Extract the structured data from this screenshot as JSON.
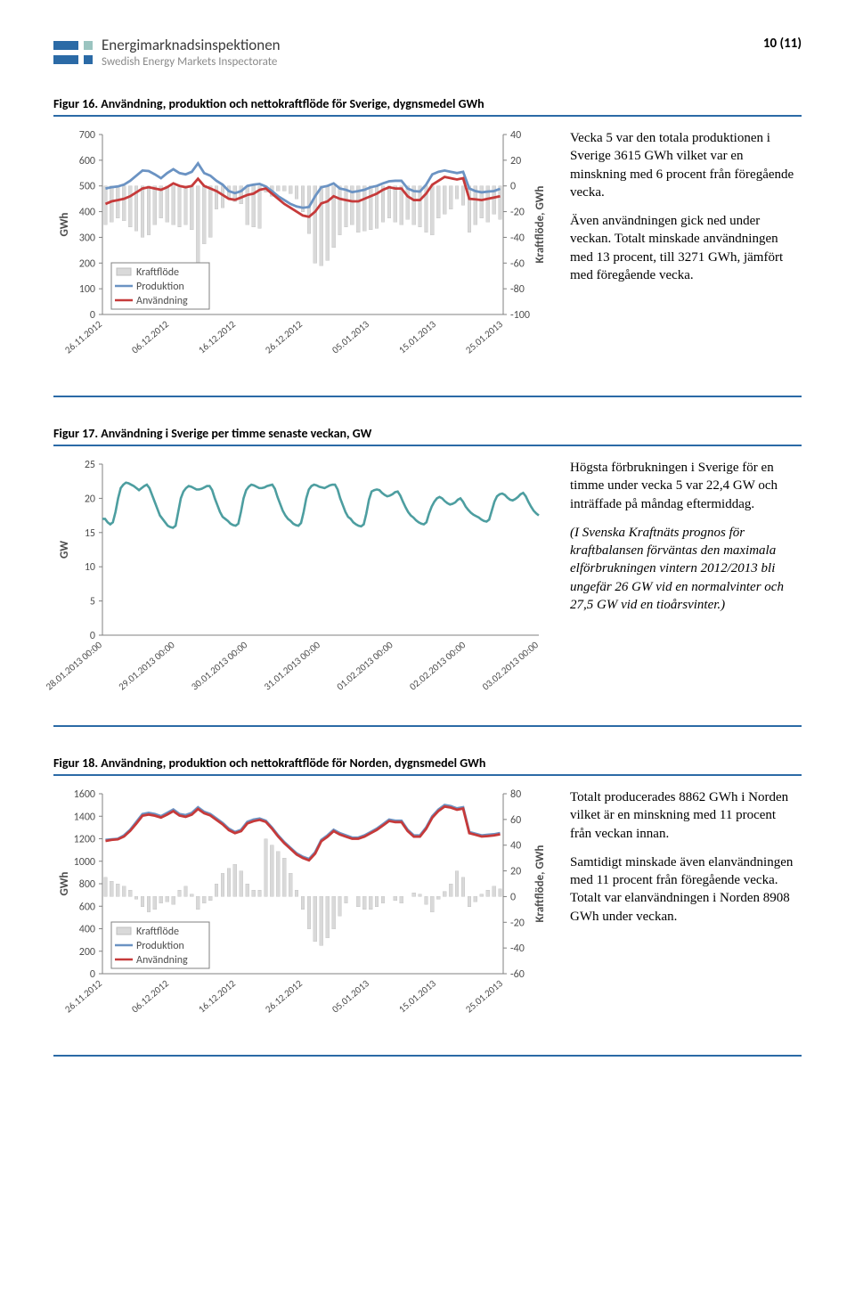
{
  "header": {
    "org1": "Energimarknadsinspektionen",
    "org2": "Swedish Energy Markets Inspectorate",
    "page_num": "10 (11)"
  },
  "colors": {
    "brand_blue": "#2b6aa6",
    "brand_teal": "#9bc4c0",
    "line_prod": "#6b93c3",
    "line_use": "#c63a3a",
    "line_hourly": "#4d9ea0",
    "bar_grey": "#d9d9d9",
    "grid": "#bfbfbf",
    "axis": "#808080",
    "text": "#4d4d4d"
  },
  "fig16": {
    "caption": "Figur 16. Användning, produktion och nettokraftflöde för Sverige, dygnsmedel GWh",
    "left_axis": {
      "label": "GWh",
      "min": 0,
      "max": 700,
      "step": 100
    },
    "right_axis": {
      "label": "Kraftflöde, GWh",
      "min": -100,
      "max": 40,
      "step": 20
    },
    "x_labels": [
      "26.11.2012",
      "06.12.2012",
      "16.12.2012",
      "26.12.2012",
      "05.01.2013",
      "15.01.2013",
      "25.01.2013"
    ],
    "legend": [
      "Kraftflöde",
      "Produktion",
      "Användning"
    ],
    "prod": [
      490,
      495,
      498,
      505,
      520,
      540,
      560,
      558,
      545,
      530,
      550,
      565,
      550,
      545,
      555,
      588,
      550,
      540,
      520,
      505,
      480,
      472,
      480,
      500,
      505,
      508,
      498,
      480,
      460,
      445,
      430,
      420,
      415,
      418,
      460,
      495,
      500,
      510,
      490,
      485,
      476,
      480,
      485,
      495,
      500,
      510,
      518,
      520,
      520,
      490,
      480,
      478,
      505,
      545,
      555,
      560,
      555,
      550,
      555,
      490,
      480,
      475,
      478,
      480,
      489
    ],
    "use": [
      430,
      440,
      445,
      450,
      460,
      475,
      490,
      495,
      490,
      485,
      495,
      510,
      500,
      495,
      500,
      528,
      500,
      490,
      480,
      465,
      450,
      446,
      455,
      465,
      470,
      485,
      490,
      470,
      450,
      430,
      415,
      400,
      385,
      380,
      400,
      432,
      440,
      460,
      450,
      445,
      440,
      440,
      450,
      460,
      470,
      485,
      495,
      490,
      490,
      460,
      445,
      445,
      470,
      505,
      520,
      535,
      530,
      525,
      530,
      450,
      448,
      445,
      450,
      455,
      460
    ],
    "flow": [
      -30,
      -28,
      -25,
      -27,
      -32,
      -35,
      -40,
      -38,
      -30,
      -25,
      -28,
      -30,
      -32,
      -30,
      -34,
      -60,
      -45,
      -40,
      -18,
      -17,
      -10,
      -12,
      -14,
      -30,
      -32,
      -33,
      -5,
      -8,
      -4,
      -4,
      -6,
      -10,
      -20,
      -37,
      -60,
      -62,
      -58,
      -48,
      -38,
      -32,
      -30,
      -36,
      -35,
      -34,
      -33,
      -28,
      -25,
      -28,
      -30,
      -26,
      -30,
      -32,
      -36,
      -38,
      -25,
      -22,
      -18,
      -10,
      -15,
      -36,
      -30,
      -25,
      -28,
      -22,
      -26
    ],
    "text": {
      "p1": "Vecka 5 var den totala produktionen i Sverige 3615 GWh vilket var en minskning med 6 procent från föregående vecka.",
      "p2": "Även användningen gick ned under veckan. Totalt minskade användningen med 13 procent, till 3271 GWh, jämfört med föregående vecka."
    }
  },
  "fig17": {
    "caption": "Figur 17. Användning i Sverige per timme senaste veckan, GW",
    "left_axis": {
      "label": "GW",
      "min": 0,
      "max": 25,
      "step": 5
    },
    "x_labels": [
      "28.01.2013 00:00",
      "29.01.2013 00:00",
      "30.01.2013 00:00",
      "31.01.2013 00:00",
      "01.02.2013 00:00",
      "02.02.2013 00:00",
      "03.02.2013 00:00"
    ],
    "hourly": [
      17,
      17,
      16.5,
      16.2,
      16.5,
      18,
      20,
      21.5,
      22,
      22.3,
      22.2,
      22,
      21.8,
      21.5,
      21.2,
      21.5,
      21.8,
      22,
      21.5,
      20.5,
      19.5,
      18.5,
      17.5,
      17,
      16.5,
      16,
      15.8,
      15.7,
      16,
      18,
      20,
      21,
      21.5,
      21.8,
      21.7,
      21.5,
      21.3,
      21.3,
      21.4,
      21.6,
      21.8,
      21.8,
      21.2,
      20,
      19,
      18,
      17.3,
      17,
      16.7,
      16.3,
      16.1,
      16,
      16.3,
      18,
      20,
      21.2,
      21.7,
      22,
      21.9,
      21.7,
      21.5,
      21.5,
      21.6,
      21.8,
      21.9,
      22,
      21.4,
      20.2,
      19.2,
      18.2,
      17.5,
      17,
      16.7,
      16.3,
      16.1,
      16,
      16.4,
      18,
      20,
      21.3,
      21.8,
      22,
      21.9,
      21.7,
      21.6,
      21.5,
      21.7,
      21.9,
      22,
      22,
      21.3,
      20,
      19,
      18,
      17.3,
      17,
      16.5,
      16.2,
      16,
      15.9,
      16.2,
      17.8,
      19.8,
      21,
      21.2,
      21.3,
      21.2,
      20.8,
      20.5,
      20.3,
      20.4,
      20.6,
      20.9,
      21,
      20.4,
      19.5,
      18.7,
      18,
      17.5,
      17.2,
      16.8,
      16.5,
      16.3,
      16.2,
      16.5,
      17.8,
      18.8,
      19.5,
      20,
      20.2,
      20,
      19.6,
      19.3,
      19.1,
      19.2,
      19.4,
      19.8,
      20,
      19.5,
      18.8,
      18.3,
      17.9,
      17.6,
      17.4,
      17.2,
      16.9,
      16.7,
      16.6,
      16.9,
      18.2,
      19.5,
      20.3,
      20.6,
      20.7,
      20.5,
      20.1,
      19.8,
      19.7,
      19.9,
      20.2,
      20.6,
      20.8,
      20.3,
      19.5,
      18.8,
      18.2,
      17.8,
      17.5
    ],
    "text": {
      "p1": "Högsta förbrukningen i Sverige för en timme under vecka 5 var 22,4 GW och inträffade på måndag eftermiddag.",
      "p2": "(I Svenska Kraftnäts prognos för kraftbalansen förväntas den maximala elförbrukningen vintern 2012/2013 bli ungefär 26 GW vid en normalvinter och 27,5 GW vid en tioårsvinter.)"
    }
  },
  "fig18": {
    "caption": "Figur 18. Användning, produktion och nettokraftflöde för Norden, dygnsmedel GWh",
    "left_axis": {
      "label": "GWh",
      "min": 0,
      "max": 1600,
      "step": 200
    },
    "right_axis": {
      "label": "Kraftflöde, GWh",
      "min": -60,
      "max": 80,
      "step": 20
    },
    "x_labels": [
      "26.11.2012",
      "06.12.2012",
      "16.12.2012",
      "26.12.2012",
      "05.01.2013",
      "15.01.2013",
      "25.01.2013"
    ],
    "legend": [
      "Kraftflöde",
      "Produktion",
      "Användning"
    ],
    "prod": [
      1190,
      1195,
      1200,
      1230,
      1280,
      1350,
      1420,
      1430,
      1420,
      1400,
      1430,
      1460,
      1420,
      1410,
      1430,
      1480,
      1440,
      1420,
      1380,
      1340,
      1290,
      1260,
      1280,
      1350,
      1370,
      1380,
      1360,
      1300,
      1230,
      1170,
      1120,
      1070,
      1040,
      1020,
      1080,
      1190,
      1230,
      1280,
      1250,
      1230,
      1210,
      1210,
      1230,
      1260,
      1290,
      1330,
      1370,
      1360,
      1360,
      1280,
      1230,
      1230,
      1300,
      1400,
      1460,
      1500,
      1490,
      1470,
      1480,
      1260,
      1245,
      1230,
      1235,
      1240,
      1250
    ],
    "use": [
      1180,
      1190,
      1195,
      1220,
      1270,
      1335,
      1405,
      1415,
      1405,
      1388,
      1415,
      1445,
      1406,
      1395,
      1415,
      1465,
      1427,
      1407,
      1367,
      1328,
      1277,
      1250,
      1268,
      1336,
      1356,
      1368,
      1350,
      1290,
      1220,
      1160,
      1110,
      1060,
      1029,
      1008,
      1068,
      1178,
      1218,
      1268,
      1238,
      1218,
      1200,
      1200,
      1219,
      1249,
      1279,
      1318,
      1358,
      1348,
      1348,
      1269,
      1219,
      1219,
      1288,
      1388,
      1447,
      1486,
      1477,
      1458,
      1468,
      1250,
      1235,
      1220,
      1224,
      1230,
      1240
    ],
    "flow": [
      15,
      12,
      10,
      8,
      5,
      -2,
      -8,
      -12,
      -10,
      -5,
      -4,
      -6,
      5,
      8,
      2,
      -10,
      -5,
      -3,
      10,
      18,
      22,
      25,
      20,
      10,
      5,
      5,
      45,
      40,
      35,
      30,
      18,
      5,
      -10,
      -25,
      -35,
      -38,
      -32,
      -25,
      -15,
      -5,
      0,
      -8,
      -10,
      -10,
      -8,
      -5,
      0,
      -3,
      -5,
      0,
      3,
      2,
      -6,
      -12,
      -2,
      4,
      10,
      20,
      15,
      -8,
      -4,
      2,
      5,
      8,
      6
    ],
    "text": {
      "p1": "Totalt producerades 8862 GWh i Norden vilket är en minskning med 11 procent från veckan innan.",
      "p2": "Samtidigt minskade även elanvändningen med 11 procent från föregående vecka. Totalt var elanvändningen i Norden 8908 GWh under veckan."
    }
  }
}
